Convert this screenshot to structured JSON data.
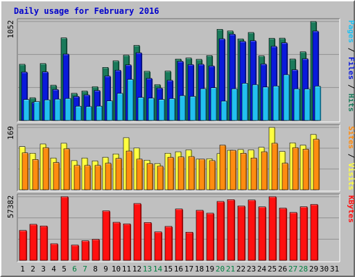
{
  "title": "Daily usage for February 2016",
  "colors": {
    "background": "#c0c0c0",
    "plot_bg": "#c0c0c0",
    "title": "#0000cc",
    "hits": "#1a7a5a",
    "files": "#0a1adb",
    "pages": "#22c0f0",
    "visits": "#ffff40",
    "sites": "#ff8c10",
    "kbytes": "#ff1010",
    "weekend_label": "#008040",
    "weekday_label": "#000000"
  },
  "chart_data": [
    {
      "type": "bar",
      "panel": "top",
      "ymax_label": "1052",
      "ylim": [
        0,
        1052
      ],
      "right_label_parts": [
        {
          "text": "Pages",
          "color": "#22c0f0"
        },
        {
          "text": " / ",
          "color": "#000000"
        },
        {
          "text": "Files",
          "color": "#0a1adb"
        },
        {
          "text": " / ",
          "color": "#000000"
        },
        {
          "text": "Hits",
          "color": "#1a7a5a"
        }
      ],
      "categories": [
        "1",
        "2",
        "3",
        "4",
        "5",
        "6",
        "7",
        "8",
        "9",
        "10",
        "11",
        "12",
        "13",
        "14",
        "15",
        "16",
        "17",
        "18",
        "19",
        "20",
        "21",
        "22",
        "23",
        "24",
        "25",
        "26",
        "27",
        "28",
        "29",
        "30",
        "31"
      ],
      "series": [
        {
          "name": "Hits",
          "values": [
            597,
            242,
            605,
            375,
            878,
            289,
            313,
            359,
            564,
            634,
            694,
            798,
            523,
            381,
            525,
            653,
            664,
            650,
            690,
            969,
            951,
            867,
            935,
            687,
            874,
            875,
            654,
            730,
            1052,
            0,
            0
          ]
        },
        {
          "name": "Files",
          "values": [
            515,
            192,
            517,
            330,
            706,
            256,
            272,
            319,
            472,
            534,
            591,
            720,
            448,
            345,
            427,
            629,
            594,
            597,
            580,
            868,
            917,
            841,
            848,
            600,
            788,
            826,
            539,
            656,
            950,
            0,
            0
          ]
        },
        {
          "name": "Pages",
          "values": [
            223,
            201,
            219,
            227,
            234,
            152,
            148,
            153,
            208,
            288,
            437,
            245,
            237,
            224,
            233,
            264,
            256,
            338,
            348,
            206,
            337,
            395,
            380,
            355,
            366,
            486,
            336,
            335,
            365,
            0,
            0
          ]
        }
      ]
    },
    {
      "type": "bar",
      "panel": "middle",
      "ymax_label": "169",
      "ylim": [
        0,
        169
      ],
      "right_label_parts": [
        {
          "text": "Sites",
          "color": "#ff8c10"
        },
        {
          "text": " / ",
          "color": "#000000"
        },
        {
          "text": "Visits",
          "color": "#ffff40"
        }
      ],
      "categories": [
        "1",
        "2",
        "3",
        "4",
        "5",
        "6",
        "7",
        "8",
        "9",
        "10",
        "11",
        "12",
        "13",
        "14",
        "15",
        "16",
        "17",
        "18",
        "19",
        "20",
        "21",
        "22",
        "23",
        "24",
        "25",
        "26",
        "27",
        "28",
        "29",
        "30",
        "31"
      ],
      "series": [
        {
          "name": "Visits",
          "values": [
            117,
            99,
            124,
            86,
            126,
            79,
            86,
            78,
            88,
            97,
            141,
            113,
            80,
            71,
            99,
            103,
            108,
            83,
            84,
            98,
            107,
            109,
            108,
            115,
            169,
            104,
            127,
            121,
            150,
            0,
            0
          ]
        },
        {
          "name": "Sites",
          "values": [
            100,
            82,
            114,
            74,
            111,
            66,
            66,
            66,
            72,
            85,
            105,
            83,
            71,
            64,
            88,
            89,
            90,
            83,
            79,
            121,
            107,
            99,
            86,
            103,
            126,
            72,
            114,
            110,
            137,
            0,
            0
          ]
        }
      ]
    },
    {
      "type": "bar",
      "panel": "bottom",
      "ymax_label": "57382",
      "ylim": [
        0,
        57382
      ],
      "right_label_parts": [
        {
          "text": "KBytes",
          "color": "#ff1010"
        }
      ],
      "categories": [
        "1",
        "2",
        "3",
        "4",
        "5",
        "6",
        "7",
        "8",
        "9",
        "10",
        "11",
        "12",
        "13",
        "14",
        "15",
        "16",
        "17",
        "18",
        "19",
        "20",
        "21",
        "22",
        "23",
        "24",
        "25",
        "26",
        "27",
        "28",
        "29",
        "30",
        "31"
      ],
      "series": [
        {
          "name": "KBytes",
          "values": [
            27000,
            32500,
            31000,
            15000,
            57382,
            13800,
            17700,
            19000,
            44600,
            34300,
            32900,
            51200,
            34100,
            25700,
            30600,
            46300,
            25400,
            45100,
            42500,
            53100,
            54700,
            49000,
            54400,
            48200,
            57382,
            47100,
            43200,
            48300,
            50400,
            0,
            0
          ]
        }
      ]
    }
  ],
  "weekend_days": [
    6,
    7,
    13,
    14,
    20,
    21,
    27,
    28
  ]
}
